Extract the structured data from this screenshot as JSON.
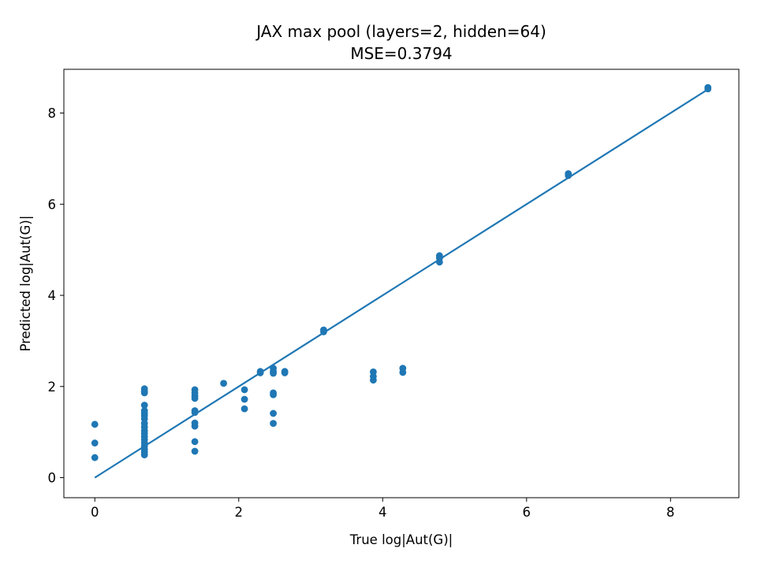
{
  "chart_data": {
    "type": "scatter",
    "title": "JAX max pool (layers=2, hidden=64)",
    "subtitle": "MSE=0.3794",
    "xlabel": "True log|Aut(G)|",
    "ylabel": "Predicted log|Aut(G)|",
    "xlim": [
      -0.43,
      8.95
    ],
    "ylim": [
      -0.44,
      8.96
    ],
    "xticks": [
      0,
      2,
      4,
      6,
      8
    ],
    "yticks": [
      0,
      2,
      4,
      6,
      8
    ],
    "grid": false,
    "colors": {
      "points": "#1f77b4",
      "line": "#1f77b4"
    },
    "reference_line": {
      "x": [
        0,
        8.52
      ],
      "y": [
        0,
        8.52
      ]
    },
    "points": [
      [
        0,
        1.17
      ],
      [
        0,
        0.76
      ],
      [
        0,
        0.44
      ],
      [
        0.69,
        1.95
      ],
      [
        0.69,
        1.89
      ],
      [
        0.69,
        1.86
      ],
      [
        0.69,
        1.59
      ],
      [
        0.69,
        1.47
      ],
      [
        0.69,
        1.41
      ],
      [
        0.69,
        1.36
      ],
      [
        0.69,
        1.29
      ],
      [
        0.69,
        1.19
      ],
      [
        0.69,
        1.11
      ],
      [
        0.69,
        1.03
      ],
      [
        0.69,
        0.97
      ],
      [
        0.69,
        0.9
      ],
      [
        0.69,
        0.83
      ],
      [
        0.69,
        0.76
      ],
      [
        0.69,
        0.69
      ],
      [
        0.69,
        0.62
      ],
      [
        0.69,
        0.56
      ],
      [
        0.69,
        0.5
      ],
      [
        1.39,
        1.93
      ],
      [
        1.39,
        1.86
      ],
      [
        1.39,
        1.79
      ],
      [
        1.39,
        1.74
      ],
      [
        1.39,
        1.47
      ],
      [
        1.39,
        1.43
      ],
      [
        1.39,
        1.2
      ],
      [
        1.39,
        1.13
      ],
      [
        1.39,
        0.79
      ],
      [
        1.39,
        0.58
      ],
      [
        1.79,
        2.07
      ],
      [
        2.08,
        1.93
      ],
      [
        2.08,
        1.72
      ],
      [
        2.08,
        1.51
      ],
      [
        2.3,
        2.33
      ],
      [
        2.3,
        2.3
      ],
      [
        2.48,
        2.4
      ],
      [
        2.48,
        2.33
      ],
      [
        2.48,
        2.29
      ],
      [
        2.48,
        1.86
      ],
      [
        2.48,
        1.82
      ],
      [
        2.48,
        1.41
      ],
      [
        2.48,
        1.19
      ],
      [
        2.64,
        2.33
      ],
      [
        2.64,
        2.3
      ],
      [
        3.18,
        3.24
      ],
      [
        3.18,
        3.2
      ],
      [
        3.87,
        2.32
      ],
      [
        3.87,
        2.22
      ],
      [
        3.87,
        2.14
      ],
      [
        4.28,
        2.4
      ],
      [
        4.28,
        2.31
      ],
      [
        4.79,
        4.87
      ],
      [
        4.79,
        4.82
      ],
      [
        4.79,
        4.73
      ],
      [
        6.58,
        6.67
      ],
      [
        6.58,
        6.63
      ],
      [
        8.52,
        8.56
      ],
      [
        8.52,
        8.53
      ]
    ]
  }
}
